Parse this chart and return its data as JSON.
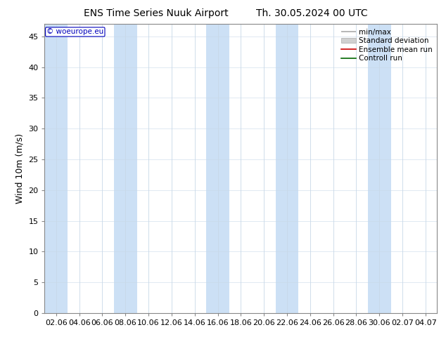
{
  "title_left": "ENS Time Series Nuuk Airport",
  "title_right": "Th. 30.05.2024 00 UTC",
  "ylabel": "Wind 10m (m/s)",
  "watermark": "© woeurope.eu",
  "ylim": [
    0,
    47
  ],
  "yticks": [
    0,
    5,
    10,
    15,
    20,
    25,
    30,
    35,
    40,
    45
  ],
  "x_tick_labels": [
    "02.06",
    "04.06",
    "06.06",
    "08.06",
    "10.06",
    "12.06",
    "14.06",
    "16.06",
    "18.06",
    "20.06",
    "22.06",
    "24.06",
    "26.06",
    "28.06",
    "30.06",
    "02.07",
    "04.07"
  ],
  "n_ticks": 17,
  "band_color": "#cce0f5",
  "background_color": "#ffffff",
  "plot_bg_color": "#ffffff",
  "title_fontsize": 10,
  "axis_fontsize": 9,
  "tick_fontsize": 8,
  "watermark_color": "#0000bb",
  "grid_color": "#c8d8e8",
  "spine_color": "#888888",
  "band_indices": [
    0,
    4,
    8,
    12,
    16
  ]
}
